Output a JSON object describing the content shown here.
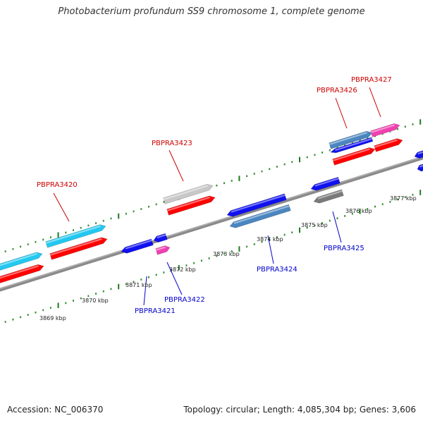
{
  "title": "Photobacterium profundum SS9 chromosome 1, complete genome",
  "footer": {
    "accession": "Accession: NC_006370",
    "summary": "Topology: circular; Length: 4,085,304 bp; Genes: 3,606"
  },
  "colors": {
    "backbone": "#8a8a8a",
    "tick_major": "#1e7a1e",
    "tick_minor": "#2f8f2f",
    "label_forward": "#cc0000",
    "label_reverse": "#0000cc",
    "red": "#ff0000",
    "cyan": "#22c8f0",
    "gray_light": "#c8c8c8",
    "gray_dark": "#7a7a7a",
    "blue": "#1010f0",
    "steel": "#4a86c0",
    "magenta": "#f040b0"
  },
  "axis": {
    "kbp_labels": [
      "3869 kbp",
      "3870 kbp",
      "3871 kbp",
      "3872 kbp",
      "3873 kbp",
      "3874 kbp",
      "3875 kbp",
      "3876 kbp",
      "3877 kbp"
    ]
  },
  "genes": [
    {
      "label": "PBPRA3420",
      "strand": "forward",
      "color": "cyan",
      "icon": "gene-arrow"
    },
    {
      "label": "PBPRA3421",
      "strand": "reverse",
      "color": "blue",
      "icon": "gene-arrow"
    },
    {
      "label": "PBPRA3422",
      "strand": "reverse",
      "color": "magenta",
      "icon": "gene-arrow"
    },
    {
      "label": "PBPRA3423",
      "strand": "forward",
      "color": "gray_light",
      "icon": "gene-arrow"
    },
    {
      "label": "PBPRA3424",
      "strand": "reverse",
      "color": "steel",
      "icon": "gene-arrow"
    },
    {
      "label": "PBPRA3425",
      "strand": "reverse",
      "color": "gray_dark",
      "icon": "gene-arrow"
    },
    {
      "label": "PBPRA3426",
      "strand": "forward",
      "color": "steel",
      "icon": "gene-arrow"
    },
    {
      "label": "PBPRA3427",
      "strand": "forward",
      "color": "magenta",
      "icon": "gene-arrow"
    }
  ]
}
